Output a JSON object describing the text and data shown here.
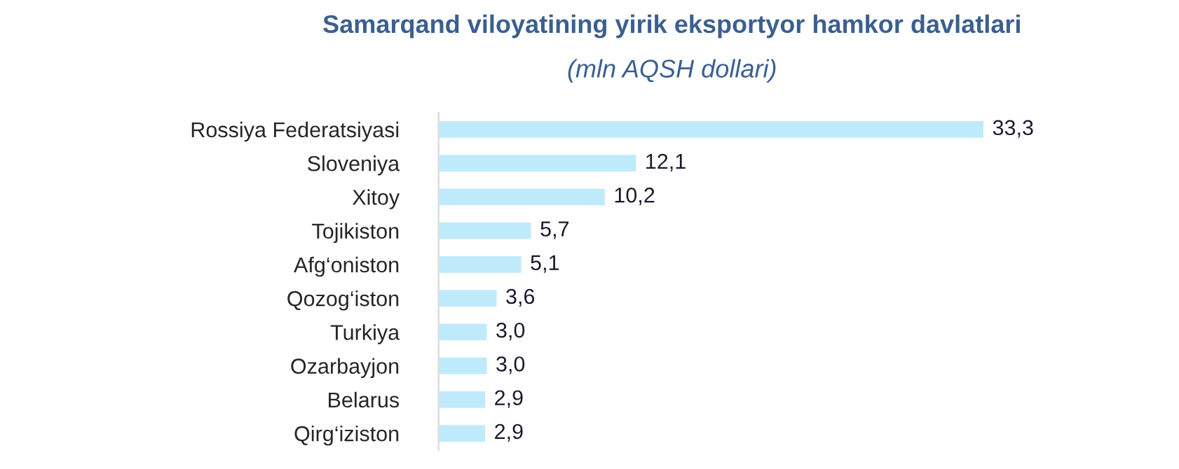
{
  "chart_data": {
    "type": "bar",
    "orientation": "horizontal",
    "title": "Samarqand viloyatining yirik eksportyor hamkor davlatlari",
    "subtitle": "(mln AQSH dollari)",
    "categories": [
      "Rossiya Federatsiyasi",
      "Sloveniya",
      "Xitoy",
      "Tojikiston",
      "Afg‘oniston",
      "Qozog‘iston",
      "Turkiya",
      "Ozarbayjon",
      "Belarus",
      "Qirg‘iziston"
    ],
    "values": [
      33.3,
      12.1,
      10.2,
      5.7,
      5.1,
      3.6,
      3.0,
      3.0,
      2.9,
      2.9
    ],
    "value_labels": [
      "33,3",
      "12,1",
      "10,2",
      "5,7",
      "5,1",
      "3,6",
      "3,0",
      "3,0",
      "2,9",
      "2,9"
    ],
    "color": "#bfeafc",
    "grid": false,
    "legend": false
  }
}
